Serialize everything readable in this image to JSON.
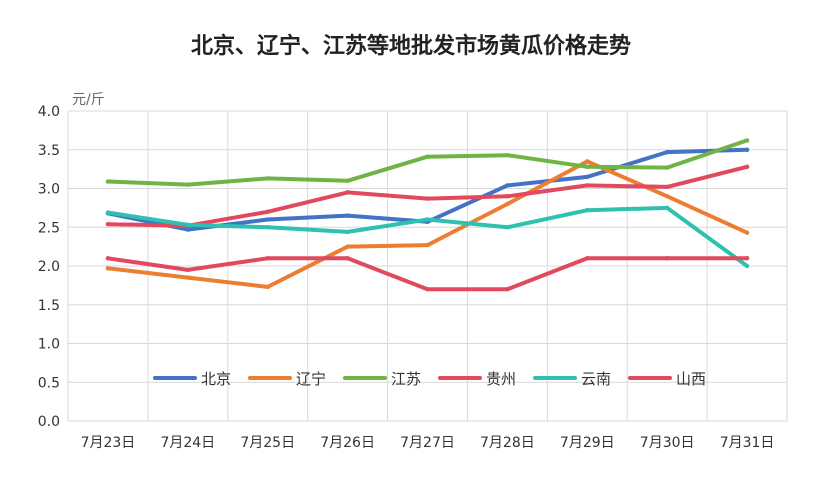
{
  "chart_data": {
    "type": "line",
    "title": "北京、辽宁、江苏等地批发市场黄瓜价格走势",
    "ylabel": "元/斤",
    "xlabel": "",
    "ylim": [
      0,
      4
    ],
    "yticks": [
      "0.0",
      "0.5",
      "1.0",
      "1.5",
      "2.0",
      "2.5",
      "3.0",
      "3.5",
      "4.0"
    ],
    "categories": [
      "7月23日",
      "7月24日",
      "7月25日",
      "7月26日",
      "7月27日",
      "7月28日",
      "7月29日",
      "7月30日",
      "7月31日"
    ],
    "grid": true,
    "legend_position": "bottom-inside",
    "series": [
      {
        "name": "北京",
        "color": "#4472c4",
        "values": [
          2.68,
          2.47,
          2.6,
          2.65,
          2.57,
          3.04,
          3.15,
          3.47,
          3.5
        ]
      },
      {
        "name": "辽宁",
        "color": "#ed7d31",
        "values": [
          1.97,
          1.85,
          1.73,
          2.25,
          2.27,
          2.8,
          3.35,
          2.9,
          2.43
        ]
      },
      {
        "name": "江苏",
        "color": "#70b443",
        "values": [
          3.09,
          3.05,
          3.13,
          3.1,
          3.41,
          3.43,
          3.28,
          3.27,
          3.62
        ]
      },
      {
        "name": "贵州",
        "color": "#e0495e",
        "values": [
          2.54,
          2.52,
          2.7,
          2.95,
          2.87,
          2.9,
          3.04,
          3.02,
          3.28
        ]
      },
      {
        "name": "云南",
        "color": "#2ec0b0",
        "values": [
          2.69,
          2.53,
          2.5,
          2.44,
          2.6,
          2.5,
          2.72,
          2.75,
          2.0
        ]
      },
      {
        "name": "山西",
        "color": "#e0495e",
        "values": [
          2.1,
          1.95,
          2.1,
          2.1,
          1.7,
          1.7,
          2.1,
          2.1,
          2.1
        ]
      }
    ]
  }
}
